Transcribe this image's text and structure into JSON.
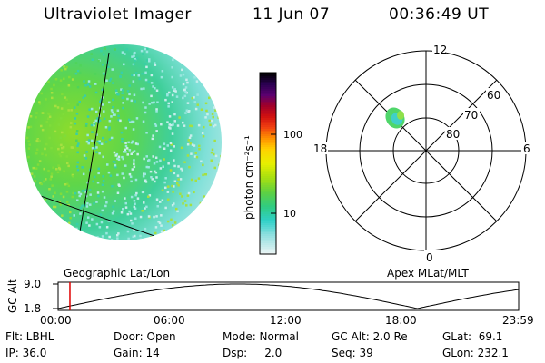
{
  "header": {
    "instrument": "Ultraviolet Imager",
    "date": "11 Jun 07",
    "time": "00:36:49 UT"
  },
  "left_panel": {
    "caption": "Geographic Lat/Lon"
  },
  "colorbar": {
    "unit": "photon cm⁻²s⁻¹",
    "ticks": [
      "100",
      "10"
    ],
    "scale": "log"
  },
  "polar_plot": {
    "caption": "Apex MLat/MLT",
    "mlt_labels": {
      "top": "12",
      "left": "18",
      "right": "6",
      "bottom": "0"
    },
    "lat_labels": [
      "60",
      "70",
      "80"
    ]
  },
  "altitude_plot": {
    "ylabel": "GC Alt",
    "yticks": [
      "9.0",
      "1.8"
    ],
    "xticks": [
      "00:00",
      "06:00",
      "12:00",
      "18:00",
      "23:59"
    ],
    "current_time_fraction": 0.0256,
    "marker_color": "#e00000"
  },
  "info": {
    "row1": {
      "flt": "Flt: LBHL",
      "door": "Door: Open",
      "mode": "Mode: Normal",
      "gc_alt": "GC Alt: 2.0 Re",
      "glat": "GLat:  69.1"
    },
    "row2": {
      "ip": "IP: 36.0",
      "gain": "Gain: 14",
      "dsp": "Dsp:     2.0",
      "seq": "Seq: 39",
      "glon": "GLon: 232.1"
    }
  }
}
